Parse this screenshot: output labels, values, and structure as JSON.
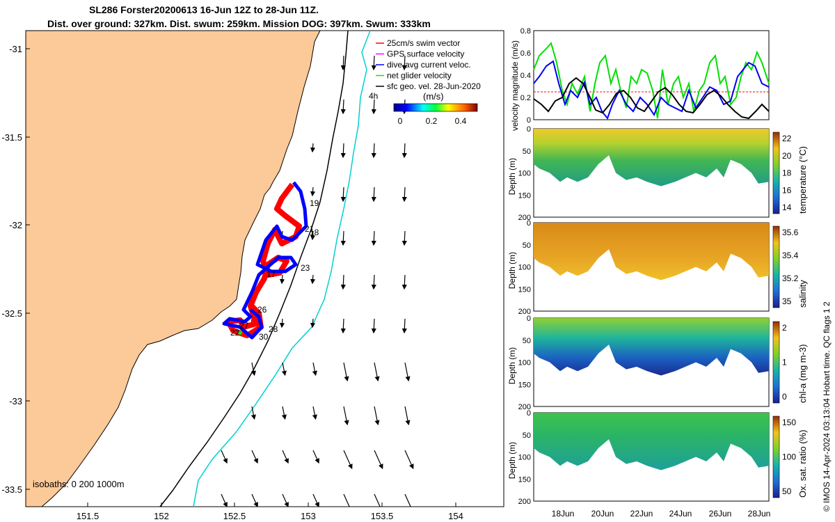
{
  "title_line1": "SL286 Forster20200613 16-Jun 12Z to 28-Jun 11Z.",
  "title_line2": "Dist. over ground: 327km. Dist. swum: 259km. Mission DOG: 397km. Swum: 333km",
  "map": {
    "lat_ticks": [
      "-31",
      "-31.5",
      "-32",
      "-32.5",
      "-33",
      "-33.5"
    ],
    "lon_ticks": [
      "151.5",
      "152",
      "152.5",
      "153",
      "153.5",
      "154"
    ],
    "legend": [
      {
        "label": "25cm/s swim vector",
        "color": "#ff0000"
      },
      {
        "label": "GPS surface velocity",
        "color": "#ff00ff"
      },
      {
        "label": "dive-avg current veloc.",
        "color": "#0000ff"
      },
      {
        "label": "net glider velocity",
        "color": "#00ee00"
      },
      {
        "label": "sfc geo. vel. 28-Jun-2020",
        "color": "#000000"
      }
    ],
    "annotation_4h": "4h",
    "colorbar_label": "(m/s)",
    "colorbar_ticks": [
      "0",
      "0.2",
      "0.4"
    ],
    "isobaths_label": "isobaths: 0   200  1000m",
    "day_labels": [
      "19",
      "18",
      "21",
      "17",
      "23",
      "26",
      "27",
      "22",
      "28",
      "30"
    ],
    "land_color": "#fcc998"
  },
  "panels": {
    "velocity": {
      "ylabel": "velocity magnitude (m/s)",
      "yticks": [
        "0",
        "0.2",
        "0.4",
        "0.6",
        "0.8"
      ]
    },
    "temperature": {
      "ylabel": "Depth (m)",
      "cbar_label": "temperature (°C)",
      "cbar_ticks": [
        "22",
        "20",
        "18",
        "16",
        "14"
      ],
      "yticks": [
        "0",
        "50",
        "100",
        "150",
        "200"
      ]
    },
    "salinity": {
      "ylabel": "Depth (m)",
      "cbar_label": "salinity",
      "cbar_ticks": [
        "35.6",
        "35.4",
        "35.2",
        "35"
      ],
      "yticks": [
        "0",
        "50",
        "100",
        "150",
        "200"
      ]
    },
    "chla": {
      "ylabel": "Depth (m)",
      "cbar_label": "chl-a (mg m-3)",
      "cbar_ticks": [
        "2",
        "1",
        "0"
      ],
      "yticks": [
        "0",
        "50",
        "100",
        "150",
        "200"
      ]
    },
    "oxygen": {
      "ylabel": "Depth (m)",
      "cbar_label": "Ox. sat. ratio (%)",
      "cbar_ticks": [
        "150",
        "100",
        "50"
      ],
      "yticks": [
        "0",
        "50",
        "100",
        "150",
        "200"
      ]
    },
    "xticks": [
      "18Jun",
      "20Jun",
      "22Jun",
      "24Jun",
      "26Jun",
      "28Jun"
    ]
  },
  "side_note": "© IMOS 14-Apr-2024 03:13:04 Hobart time. QC flags 1  2"
}
